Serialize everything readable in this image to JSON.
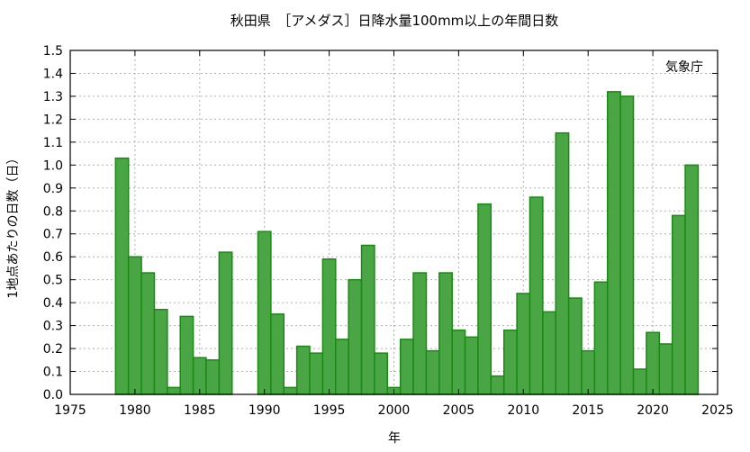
{
  "chart_data": {
    "type": "bar",
    "title": "秋田県　［アメダス］日降水量100mm以上の年間日数",
    "xlabel": "年",
    "ylabel": "1地点あたりの日数（日）",
    "annotation": "気象庁",
    "xlim": [
      1975,
      2025
    ],
    "ylim": [
      0.0,
      1.5
    ],
    "grid": true,
    "bar_color": "#4aa644",
    "bar_edge_color": "#1a8a14",
    "x_ticks": [
      "1975",
      "1980",
      "1985",
      "1990",
      "1995",
      "2000",
      "2005",
      "2010",
      "2015",
      "2020",
      "2025"
    ],
    "y_ticks": [
      "0.0",
      "0.1",
      "0.2",
      "0.3",
      "0.4",
      "0.5",
      "0.6",
      "0.7",
      "0.8",
      "0.9",
      "1.0",
      "1.1",
      "1.2",
      "1.3",
      "1.4",
      "1.5"
    ],
    "x": [
      1979,
      1980,
      1981,
      1982,
      1983,
      1984,
      1985,
      1986,
      1987,
      1988,
      1989,
      1990,
      1991,
      1992,
      1993,
      1994,
      1995,
      1996,
      1997,
      1998,
      1999,
      2000,
      2001,
      2002,
      2003,
      2004,
      2005,
      2006,
      2007,
      2008,
      2009,
      2010,
      2011,
      2012,
      2013,
      2014,
      2015,
      2016,
      2017,
      2018,
      2019,
      2020,
      2021,
      2022,
      2023
    ],
    "values": [
      1.03,
      0.6,
      0.53,
      0.37,
      0.03,
      0.34,
      0.16,
      0.15,
      0.62,
      0.0,
      0.0,
      0.71,
      0.35,
      0.03,
      0.21,
      0.18,
      0.59,
      0.24,
      0.5,
      0.65,
      0.18,
      0.03,
      0.24,
      0.53,
      0.19,
      0.53,
      0.28,
      0.25,
      0.83,
      0.08,
      0.28,
      0.44,
      0.86,
      0.36,
      1.14,
      0.42,
      0.19,
      0.49,
      1.32,
      1.3,
      0.11,
      0.27,
      0.22,
      0.78,
      1.0
    ]
  }
}
